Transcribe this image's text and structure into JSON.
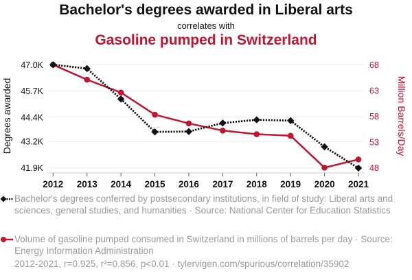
{
  "title": {
    "main": "Bachelor's degrees awarded in Liberal arts",
    "connector": "correlates with",
    "secondary": "Gasoline pumped in Switzerland"
  },
  "colors": {
    "series1": "#111111",
    "series2": "#c01530",
    "grid": "#eeeeee",
    "legend_text": "#9a9a9a"
  },
  "legend": {
    "series1": "Bachelor's degrees conferred by postsecondary institutions, in field of study: Liberal arts and sciences, general studies, and humanities · Source: National Center for Education Statistics",
    "series2": "Volume of gasoline pumped consumed in Switzerland in millions of barrels per day · Source: Energy Information Administration"
  },
  "footer": "2012-2021, r=0.925, r²=0.856, p<0.01 · tylervigen.com/spurious/correlation/35902",
  "chart_data": {
    "type": "line",
    "title": "Bachelor's degrees awarded in Liberal arts correlates with Gasoline pumped in Switzerland",
    "x": [
      "2012",
      "2013",
      "2014",
      "2015",
      "2016",
      "2017",
      "2018",
      "2019",
      "2020",
      "2021"
    ],
    "xlabel": "",
    "grid": true,
    "legend_position": "bottom",
    "series": [
      {
        "name": "Bachelor's degrees awarded in Liberal arts",
        "axis": "left",
        "marker": "diamond",
        "line_style": "dotted",
        "values": [
          47.0,
          46.81,
          45.3,
          43.67,
          43.69,
          44.11,
          44.27,
          44.23,
          42.93,
          41.88
        ]
      },
      {
        "name": "Gasoline pumped in Switzerland",
        "axis": "right",
        "marker": "circle",
        "line_style": "solid",
        "values": [
          68.0,
          65.1,
          62.6,
          58.3,
          56.6,
          55.2,
          54.5,
          54.2,
          48.0,
          49.6
        ]
      }
    ],
    "y_left": {
      "label": "Degrees awarded",
      "ticks": [
        "47.0K",
        "45.7K",
        "44.4K",
        "43.2K",
        "41.9K"
      ],
      "tick_values": [
        47.0,
        45.7,
        44.4,
        43.2,
        41.9
      ],
      "range": [
        41.9,
        47.0
      ],
      "unit": "thousands"
    },
    "y_right": {
      "label": "Million Barrels/Day",
      "ticks": [
        "68",
        "63",
        "58",
        "53",
        "48"
      ],
      "tick_values": [
        68,
        63,
        58,
        53,
        48
      ],
      "range": [
        48,
        68
      ]
    }
  }
}
